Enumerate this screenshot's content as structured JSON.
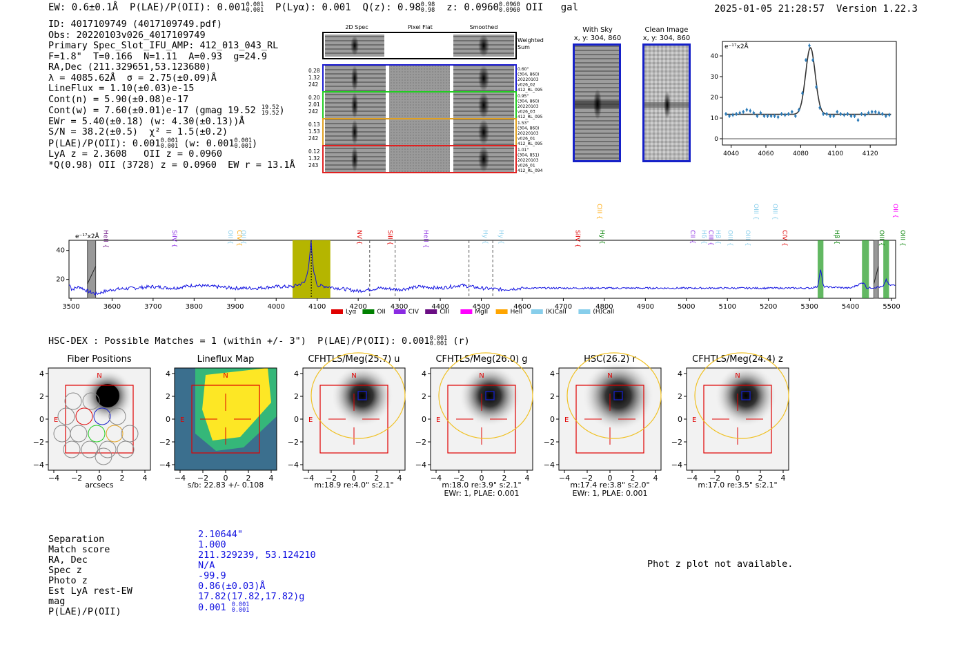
{
  "header": {
    "ew": "EW: 0.6±0.1Å",
    "plae_label": "P(LAE)/P(OII): 0.001",
    "plae_sup": "0.001",
    "plae_sub": "0.001",
    "plya": "P(Lyα): 0.001",
    "qz_label": "Q(z): 0.98",
    "qz_sup": "0.98",
    "qz_sub": "0.98",
    "z_label": "z: 0.0960",
    "z_sup": "0.0960",
    "z_sub": "0.0960",
    "line": "OII",
    "classification": "gal",
    "timestamp": "2025-01-05 21:28:57",
    "version": "Version 1.22.3"
  },
  "info": {
    "id": "ID: 4017109749 (4017109749.pdf)",
    "obs": "Obs: 20220103v026_4017109749",
    "slot": "Primary Spec_Slot_IFU_AMP: 412_013_043_RL",
    "params": "F=1.8\"  T=0.166  N=1.11  A=0.93  g=24.9",
    "radec": "RA,Dec (211.329651,53.123680)",
    "wave": "λ = 4085.62Å  σ = 2.75(±0.09)Å",
    "lineflux": "LineFlux = 1.10(±0.03)e-15",
    "contn": "Cont(n) = 5.90(±0.08)e-17",
    "contw": "Cont(w) = 7.60(±0.01)e-17 (gmag 19.52",
    "contw_sup": "19.52",
    "contw_sub": "19.52",
    "ewr": "EWr = 5.40(±0.18) (w: 4.30(±0.13))Å",
    "sn": "S/N = 38.2(±0.5)  χ² = 1.5(±0.2)",
    "plae": "P(LAE)/P(OII): 0.001",
    "plae_sup": "0.001",
    "plae_sub": "0.001",
    "plae_w": "(w: 0.001",
    "plae_w_sup": "0.001",
    "plae_w_sub": "0.001",
    "lya_z": "LyA z = 2.3608   OII z = 0.0960",
    "q_line": "*Q(0.98) OII (3728) z = 0.0960  EW r = 13.1Å"
  },
  "spec_panels": {
    "col1": "2D Spec",
    "col2": "Pixel Flat",
    "col3": "Smoothed",
    "weighted_sum": "Weighted Sum",
    "rows": [
      {
        "left": [
          "0.28",
          "1.32",
          "242"
        ],
        "right": [
          "0.60\"",
          "(304, 860)",
          "20220103",
          "v026_02",
          "412_RL_095"
        ],
        "color": "#1a1ad0"
      },
      {
        "left": [
          "0.20",
          "2.01",
          "242"
        ],
        "right": [
          "0.95\"",
          "(304, 860)",
          "20220103",
          "v026_03",
          "412_RL_095"
        ],
        "color": "#22cc22"
      },
      {
        "left": [
          "0.13",
          "1.53",
          "242"
        ],
        "right": [
          "1.53\"",
          "(304, 860)",
          "20220103",
          "v026_01",
          "412_RL_095"
        ],
        "color": "#e0a020"
      },
      {
        "left": [
          "0.12",
          "1.32",
          "243"
        ],
        "right": [
          "1.01\"",
          "(304, 851)",
          "20220103",
          "v026_01",
          "412_RL_094"
        ],
        "color": "#e02020"
      }
    ]
  },
  "cutouts": {
    "with_sky": "With Sky",
    "with_sky_xy": "x, y: 304, 860",
    "clean": "Clean Image",
    "clean_xy": "x, y: 304, 860"
  },
  "chart_data": [
    {
      "type": "line",
      "name": "line-fit",
      "ylabel": "e⁻¹⁷x2Å",
      "xlim": [
        4035,
        4135
      ],
      "ylim": [
        -3,
        47
      ],
      "xticks": [
        4040,
        4060,
        4080,
        4100,
        4120
      ],
      "yticks": [
        0,
        10,
        20,
        30,
        40
      ],
      "fit": {
        "continuum": 11.8,
        "peak": 44,
        "center": 4085.6,
        "sigma": 2.75
      },
      "points": [
        [
          4037,
          12
        ],
        [
          4039,
          11
        ],
        [
          4041,
          11.5
        ],
        [
          4043,
          12
        ],
        [
          4045,
          12.5
        ],
        [
          4047,
          13
        ],
        [
          4049,
          14
        ],
        [
          4051,
          13.5
        ],
        [
          4053,
          12.5
        ],
        [
          4055,
          11
        ],
        [
          4057,
          12.5
        ],
        [
          4059,
          11
        ],
        [
          4061,
          11
        ],
        [
          4063,
          11
        ],
        [
          4065,
          11
        ],
        [
          4067,
          10.5
        ],
        [
          4069,
          12
        ],
        [
          4071,
          11.5
        ],
        [
          4073,
          12
        ],
        [
          4075,
          13
        ],
        [
          4077,
          11
        ],
        [
          4079,
          14
        ],
        [
          4081,
          22
        ],
        [
          4083,
          38
        ],
        [
          4085,
          45
        ],
        [
          4087,
          38
        ],
        [
          4089,
          25
        ],
        [
          4091,
          15
        ],
        [
          4093,
          12
        ],
        [
          4095,
          12
        ],
        [
          4097,
          11
        ],
        [
          4099,
          11
        ],
        [
          4101,
          13
        ],
        [
          4103,
          12
        ],
        [
          4105,
          11.5
        ],
        [
          4107,
          12
        ],
        [
          4109,
          11
        ],
        [
          4111,
          11
        ],
        [
          4113,
          9
        ],
        [
          4115,
          12
        ],
        [
          4117,
          11.5
        ],
        [
          4119,
          12.5
        ],
        [
          4121,
          13
        ],
        [
          4123,
          13
        ],
        [
          4125,
          12.5
        ],
        [
          4127,
          12
        ],
        [
          4129,
          11
        ],
        [
          4131,
          11.5
        ]
      ]
    },
    {
      "type": "line",
      "name": "full-spectrum",
      "ylabel": "e⁻¹⁷x2Å",
      "xlim": [
        3495,
        5510
      ],
      "ylim": [
        7,
        47
      ],
      "xticks": [
        3500,
        3600,
        3700,
        3800,
        3900,
        4000,
        4100,
        4200,
        4300,
        4400,
        4500,
        4600,
        4700,
        4800,
        4900,
        5000,
        5100,
        5200,
        5300,
        5400,
        5500
      ],
      "yticks": [
        20,
        40
      ],
      "highlight_band": [
        4040,
        4132
      ],
      "line_center": 4085.6,
      "dashed_markers": [
        4228,
        4290,
        4470,
        4528
      ],
      "grey_bands": [
        [
          3540,
          3560
        ],
        [
          5457,
          5468
        ]
      ],
      "green_bands": [
        [
          5320,
          5334
        ],
        [
          5428,
          5445
        ],
        [
          5480,
          5494
        ]
      ],
      "series": [
        {
          "name": "spectrum",
          "values": [
            [
              3500,
              13
            ],
            [
              3520,
              15
            ],
            [
              3540,
              12
            ],
            [
              3560,
              10
            ],
            [
              3600,
              13
            ],
            [
              3650,
              14
            ],
            [
              3700,
              15
            ],
            [
              3750,
              14
            ],
            [
              3800,
              16
            ],
            [
              3850,
              15
            ],
            [
              3900,
              14
            ],
            [
              3950,
              14
            ],
            [
              4000,
              15
            ],
            [
              4040,
              15
            ],
            [
              4070,
              18
            ],
            [
              4080,
              30
            ],
            [
              4085,
              46
            ],
            [
              4090,
              28
            ],
            [
              4100,
              16
            ],
            [
              4150,
              14
            ],
            [
              4200,
              12
            ],
            [
              4250,
              14
            ],
            [
              4300,
              13
            ],
            [
              4350,
              15
            ],
            [
              4400,
              14
            ],
            [
              4450,
              16
            ],
            [
              4500,
              14
            ],
            [
              4550,
              13
            ],
            [
              4600,
              14
            ],
            [
              4700,
              14
            ],
            [
              4800,
              14
            ],
            [
              4900,
              14
            ],
            [
              5000,
              14
            ],
            [
              5100,
              14
            ],
            [
              5200,
              14
            ],
            [
              5300,
              14
            ],
            [
              5320,
              15
            ],
            [
              5327,
              27
            ],
            [
              5334,
              15
            ],
            [
              5400,
              14
            ],
            [
              5432,
              18
            ],
            [
              5440,
              14
            ],
            [
              5480,
              15
            ],
            [
              5487,
              20
            ],
            [
              5494,
              16
            ],
            [
              5510,
              16
            ]
          ]
        }
      ],
      "line_labels": [
        {
          "text": "HeII",
          "wave": 3545,
          "color": "#6a0d83"
        },
        {
          "text": "SiIV",
          "wave": 3712,
          "color": "#8a2be2"
        },
        {
          "text": "OII",
          "wave": 3848,
          "color": "#87ceeb"
        },
        {
          "text": "CIV",
          "wave": 3870,
          "color": "#ffa500"
        },
        {
          "text": "OII",
          "wave": 3880,
          "color": "#87ceeb"
        },
        {
          "text": "NV",
          "wave": 4163,
          "color": "#e00000"
        },
        {
          "text": "SiII",
          "wave": 4238,
          "color": "#e00000"
        },
        {
          "text": "HeII",
          "wave": 4325,
          "color": "#8a2be2"
        },
        {
          "text": "Hy",
          "wave": 4470,
          "color": "#87ceeb"
        },
        {
          "text": "Hy",
          "wave": 4508,
          "color": "#87ceeb"
        },
        {
          "text": "SiIV",
          "wave": 4695,
          "color": "#e00000"
        },
        {
          "text": "Hy",
          "wave": 4755,
          "color": "#008000"
        },
        {
          "text": "CIII",
          "wave": 4748,
          "color": "#ffa500",
          "top": true
        },
        {
          "text": "CII",
          "wave": 4975,
          "color": "#8a2be2"
        },
        {
          "text": "Hδ",
          "wave": 5003,
          "color": "#87ceeb"
        },
        {
          "text": "CIII",
          "wave": 5020,
          "color": "#8a2be2"
        },
        {
          "text": "Hβ",
          "wave": 5037,
          "color": "#87ceeb"
        },
        {
          "text": "OIII",
          "wave": 5067,
          "color": "#87ceeb"
        },
        {
          "text": "OIII",
          "wave": 5110,
          "color": "#87ceeb"
        },
        {
          "text": "OIII",
          "wave": 5130,
          "color": "#87ceeb",
          "top": true
        },
        {
          "text": "OIII",
          "wave": 5176,
          "color": "#87ceeb",
          "top": true
        },
        {
          "text": "CIV",
          "wave": 5200,
          "color": "#e00000"
        },
        {
          "text": "Hβ",
          "wave": 5327,
          "color": "#008000"
        },
        {
          "text": "OIII",
          "wave": 5436,
          "color": "#008000"
        },
        {
          "text": "OII",
          "wave": 5470,
          "color": "#ff00ff",
          "top": true
        },
        {
          "text": "OIII",
          "wave": 5487,
          "color": "#008000"
        }
      ],
      "legend": [
        {
          "label": "Lyα",
          "color": "#e00000"
        },
        {
          "label": "OII",
          "color": "#008000"
        },
        {
          "label": "CIV",
          "color": "#8a2be2"
        },
        {
          "label": "CIII",
          "color": "#6a0d83"
        },
        {
          "label": "MgII",
          "color": "#ff00ff"
        },
        {
          "label": "HeII",
          "color": "#ffa500"
        },
        {
          "label": "(K)CaII",
          "color": "#87ceeb"
        },
        {
          "label": "(H)CaII",
          "color": "#87ceeb"
        }
      ]
    }
  ],
  "hsc": {
    "title": "HSC-DEX : Possible Matches = 1 (within +/- 3\")  P(LAE)/P(OII): 0.001",
    "title_sup": "0.001",
    "title_sub": "0.001",
    "title_suffix": "(r)",
    "axis_ticks": [
      "−4",
      "−2",
      "0",
      "2",
      "4"
    ],
    "compass": {
      "north": "N",
      "east": "E"
    },
    "images": [
      {
        "title": "Fiber Positions",
        "caption": "arcsecs",
        "caption2": ""
      },
      {
        "title": "Lineflux Map",
        "caption": "s/b: 22.83 +/- 0.108",
        "caption2": ""
      },
      {
        "title": "CFHTLS/Meg(25.7) u",
        "caption": "m:18.9  re:4.0\"  s:2.1\"",
        "caption2": ""
      },
      {
        "title": "CFHTLS/Meg(26.0) g",
        "caption": "m:18.0  re:3.9\"  s:2.1\"",
        "caption2": "EWr: 1, PLAE: 0.001"
      },
      {
        "title": "HSC(26.2) r",
        "caption": "m:17.4  re:3.8\"  s:2.0\"",
        "caption2": "EWr: 1, PLAE: 0.001"
      },
      {
        "title": "CFHTLS/Meg(24.4) z",
        "caption": "m:17.0  re:3.5\"  s:2.1\"",
        "caption2": ""
      }
    ]
  },
  "match": {
    "labels": [
      "Separation",
      "Match score",
      "RA, Dec",
      "Spec z",
      "Photo z",
      "Est LyA rest-EW",
      "mag",
      "P(LAE)/P(OII)"
    ],
    "values": [
      "2.10644\"",
      "1.000",
      "211.329239, 53.124210",
      "N/A",
      "-99.9",
      "0.86(±0.03)Å",
      "17.82(17.82,17.82)g",
      "0.001"
    ],
    "plae_sup": "0.001",
    "plae_sub": "0.001"
  },
  "photz": "Phot z plot not available.",
  "colors": {
    "blue": "#1520c8",
    "spectrum": "#1010e0",
    "fit": "#333333",
    "points": "#2a7ab8",
    "band": "#b5b500",
    "green": "#2ea02e"
  }
}
